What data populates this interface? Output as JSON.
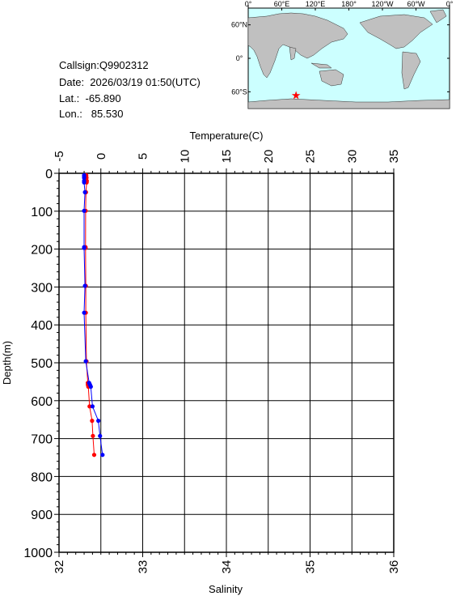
{
  "station": {
    "callsign": "Callsign:Q9902312",
    "date": "Date:  2026/03/19 01:50(UTC)",
    "lat": "Lat.:  -65.890",
    "lon": "Lon.:   85.530"
  },
  "map": {
    "top_ticks": [
      "0°",
      "60°E",
      "120°E",
      "180°",
      "120°W",
      "60°W",
      "0°"
    ],
    "lat_labels": [
      "60°N",
      "0°",
      "60°S"
    ],
    "marker": {
      "lon": 85.53,
      "lat": -65.89,
      "color": "#ff0000",
      "icon": "star-icon"
    },
    "ocean_color": "#ccffff",
    "land_color": "#c0c0c0"
  },
  "chart_data": {
    "type": "line",
    "xlabel_top": "Temperature(C)",
    "xlabel_bottom": "Salinity",
    "ylabel": "Depth(m)",
    "temperature_axis": {
      "range": [
        -5,
        35
      ],
      "ticks": [
        "-5",
        "0",
        "5",
        "10",
        "15",
        "20",
        "25",
        "30",
        "35"
      ]
    },
    "salinity_axis": {
      "range": [
        32,
        36
      ],
      "ticks": [
        "32",
        "33",
        "34",
        "35",
        "36"
      ]
    },
    "depth_axis": {
      "range": [
        0,
        1000
      ],
      "ticks": [
        "0",
        "100",
        "200",
        "300",
        "400",
        "500",
        "600",
        "700",
        "800",
        "900",
        "1000"
      ]
    },
    "grid": true,
    "series": [
      {
        "name": "Temperature",
        "axis": "top",
        "color": "#ff0000",
        "points": [
          [
            -1.75,
            5
          ],
          [
            -1.75,
            8
          ],
          [
            -1.72,
            12
          ],
          [
            -1.68,
            20
          ],
          [
            -1.7,
            24
          ],
          [
            -1.78,
            50
          ],
          [
            -1.82,
            99
          ],
          [
            -1.83,
            195
          ],
          [
            -1.83,
            197
          ],
          [
            -1.8,
            297
          ],
          [
            -1.8,
            368
          ],
          [
            -1.72,
            496
          ],
          [
            -1.56,
            553
          ],
          [
            -1.55,
            558
          ],
          [
            -1.5,
            563
          ],
          [
            -1.35,
            615
          ],
          [
            -1.05,
            653
          ],
          [
            -0.95,
            693
          ],
          [
            -0.8,
            743
          ]
        ]
      },
      {
        "name": "Salinity",
        "axis": "bottom",
        "color": "#0000ff",
        "points": [
          [
            32.3,
            5
          ],
          [
            32.3,
            8
          ],
          [
            32.3,
            12
          ],
          [
            32.3,
            20
          ],
          [
            32.3,
            24
          ],
          [
            32.31,
            50
          ],
          [
            32.3,
            99
          ],
          [
            32.3,
            195
          ],
          [
            32.3,
            197
          ],
          [
            32.31,
            297
          ],
          [
            32.3,
            368
          ],
          [
            32.32,
            496
          ],
          [
            32.36,
            553
          ],
          [
            32.37,
            558
          ],
          [
            32.38,
            563
          ],
          [
            32.4,
            615
          ],
          [
            32.47,
            653
          ],
          [
            32.49,
            693
          ],
          [
            32.52,
            743
          ]
        ]
      }
    ]
  }
}
